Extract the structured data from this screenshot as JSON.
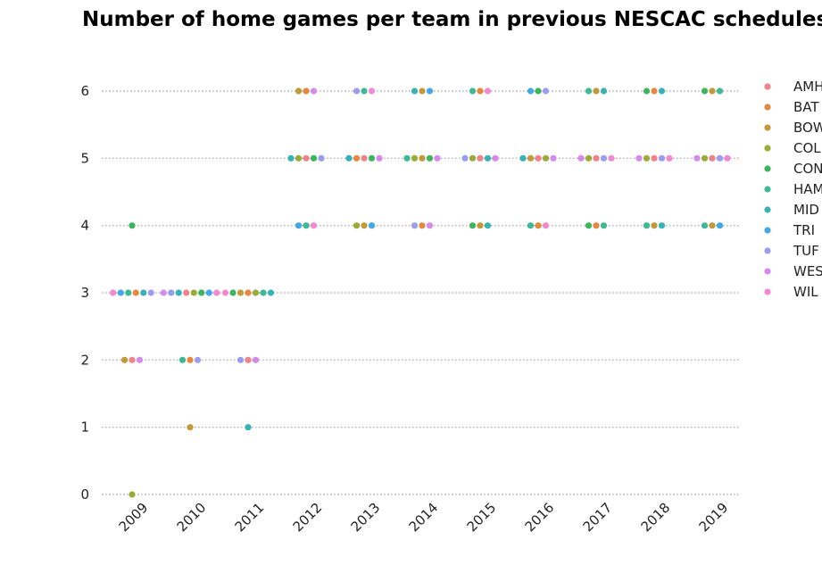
{
  "chart_data": {
    "type": "scatter",
    "title": "Number of home games per team in previous NESCAC schedules",
    "xlabel": "",
    "ylabel": "",
    "x_categories": [
      "2009",
      "2010",
      "2011",
      "2012",
      "2013",
      "2014",
      "2015",
      "2016",
      "2017",
      "2018",
      "2019"
    ],
    "yticks": [
      0,
      1,
      2,
      3,
      4,
      5,
      6
    ],
    "ylim": [
      0,
      6
    ],
    "grid": "horizontal dotted",
    "legend_position": "right",
    "teams": [
      {
        "name": "AMH",
        "color": "#f0828c"
      },
      {
        "name": "BAT",
        "color": "#e6883e"
      },
      {
        "name": "BOW",
        "color": "#c39a3a"
      },
      {
        "name": "COL",
        "color": "#9aab37"
      },
      {
        "name": "CON",
        "color": "#3cb55e"
      },
      {
        "name": "HAM",
        "color": "#3fb896"
      },
      {
        "name": "MID",
        "color": "#37b3b7"
      },
      {
        "name": "TRI",
        "color": "#42a8e6"
      },
      {
        "name": "TUF",
        "color": "#9b9ef0"
      },
      {
        "name": "WES",
        "color": "#d68aec"
      },
      {
        "name": "WIL",
        "color": "#f289d2"
      }
    ],
    "points": {
      "2009": [
        {
          "y": 6,
          "teams": []
        },
        {
          "y": 5,
          "teams": []
        },
        {
          "y": 4,
          "teams": [
            "CON"
          ]
        },
        {
          "y": 3,
          "teams": [
            "WIL",
            "TRI",
            "HAM",
            "BAT",
            "MID",
            "TUF"
          ]
        },
        {
          "y": 2,
          "teams": [
            "BOW",
            "AMH",
            "WES"
          ]
        },
        {
          "y": 1,
          "teams": []
        },
        {
          "y": 0,
          "teams": [
            "COL"
          ]
        }
      ],
      "2010": [
        {
          "y": 3,
          "teams": [
            "WES",
            "TUF",
            "MID",
            "AMH",
            "COL",
            "CON",
            "TRI",
            "WIL"
          ]
        },
        {
          "y": 2,
          "teams": [
            "HAM",
            "BAT",
            "TUF"
          ]
        },
        {
          "y": 1,
          "teams": [
            "BOW"
          ]
        }
      ],
      "2011": [
        {
          "y": 3,
          "teams": [
            "WIL",
            "CON",
            "BOW",
            "BAT",
            "COL",
            "HAM",
            "MID"
          ]
        },
        {
          "y": 2,
          "teams": [
            "TUF",
            "AMH",
            "WES"
          ]
        },
        {
          "y": 1,
          "teams": [
            "MID"
          ]
        }
      ],
      "2012": [
        {
          "y": 6,
          "teams": [
            "BOW",
            "BAT",
            "WES"
          ]
        },
        {
          "y": 5,
          "teams": [
            "MID",
            "COL",
            "AMH",
            "CON",
            "TUF"
          ]
        },
        {
          "y": 4,
          "teams": [
            "TRI",
            "HAM",
            "WIL"
          ]
        }
      ],
      "2013": [
        {
          "y": 6,
          "teams": [
            "TUF",
            "HAM",
            "WIL"
          ]
        },
        {
          "y": 5,
          "teams": [
            "MID",
            "BAT",
            "AMH",
            "CON",
            "WES"
          ]
        },
        {
          "y": 4,
          "teams": [
            "COL",
            "BOW",
            "TRI"
          ]
        }
      ],
      "2014": [
        {
          "y": 6,
          "teams": [
            "MID",
            "BOW",
            "TRI"
          ]
        },
        {
          "y": 5,
          "teams": [
            "HAM",
            "COL",
            "BOW",
            "CON",
            "WES"
          ]
        },
        {
          "y": 4,
          "teams": [
            "TUF",
            "BAT",
            "WES"
          ]
        }
      ],
      "2015": [
        {
          "y": 6,
          "teams": [
            "HAM",
            "BAT",
            "WIL"
          ]
        },
        {
          "y": 5,
          "teams": [
            "TUF",
            "COL",
            "AMH",
            "MID",
            "WES"
          ]
        },
        {
          "y": 4,
          "teams": [
            "CON",
            "BOW",
            "MID"
          ]
        }
      ],
      "2016": [
        {
          "y": 6,
          "teams": [
            "TRI",
            "CON",
            "TUF"
          ]
        },
        {
          "y": 5,
          "teams": [
            "MID",
            "BOW",
            "AMH",
            "COL",
            "WES"
          ]
        },
        {
          "y": 4,
          "teams": [
            "HAM",
            "BAT",
            "WIL"
          ]
        }
      ],
      "2017": [
        {
          "y": 6,
          "teams": [
            "HAM",
            "BOW",
            "MID"
          ]
        },
        {
          "y": 5,
          "teams": [
            "WES",
            "COL",
            "AMH",
            "TUF",
            "WIL"
          ]
        },
        {
          "y": 4,
          "teams": [
            "CON",
            "BAT",
            "HAM"
          ]
        }
      ],
      "2018": [
        {
          "y": 6,
          "teams": [
            "CON",
            "BAT",
            "MID"
          ]
        },
        {
          "y": 5,
          "teams": [
            "WES",
            "COL",
            "AMH",
            "TUF",
            "WIL"
          ]
        },
        {
          "y": 4,
          "teams": [
            "HAM",
            "BOW",
            "MID"
          ]
        }
      ],
      "2019": [
        {
          "y": 6,
          "teams": [
            "CON",
            "BOW",
            "HAM"
          ]
        },
        {
          "y": 5,
          "teams": [
            "WES",
            "COL",
            "AMH",
            "TUF",
            "WIL"
          ]
        },
        {
          "y": 4,
          "teams": [
            "HAM",
            "BOW",
            "TRI"
          ]
        }
      ]
    }
  }
}
